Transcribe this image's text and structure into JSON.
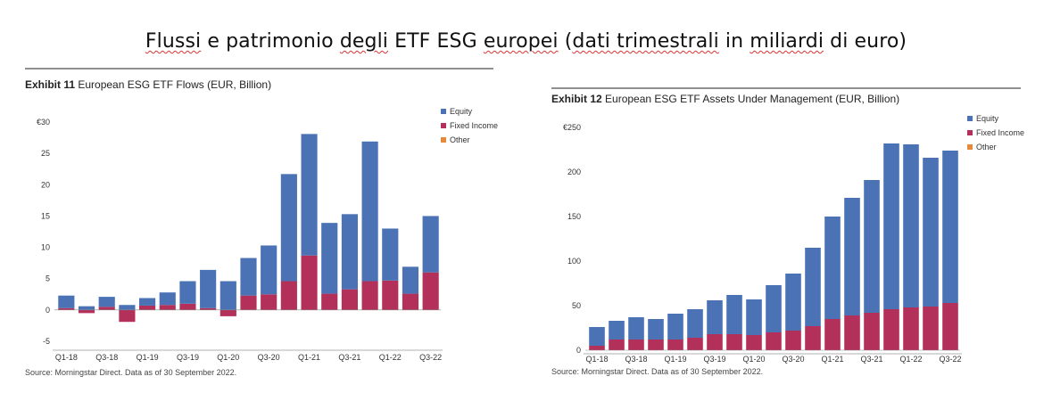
{
  "header": {
    "title_parts": [
      {
        "text": "Flussi",
        "wavy": true
      },
      {
        "text": " e patrimonio ",
        "wavy": false
      },
      {
        "text": "degli",
        "wavy": true
      },
      {
        "text": " ETF ESG ",
        "wavy": false
      },
      {
        "text": "europei",
        "wavy": true
      },
      {
        "text": " (",
        "wavy": false
      },
      {
        "text": "dati trimestrali",
        "wavy": true
      },
      {
        "text": " in ",
        "wavy": false
      },
      {
        "text": "miliardi",
        "wavy": true
      },
      {
        "text": " di euro)",
        "wavy": false
      }
    ]
  },
  "colors": {
    "equity": "#4a72b4",
    "fixed_income": "#b3305a",
    "other": "#e48a3c",
    "rule": "#222222",
    "axis": "#999999",
    "text": "#333333"
  },
  "chart_data": [
    {
      "type": "bar",
      "stacked": true,
      "exhibit": "Exhibit 11",
      "title": "European ESG ETF Flows (EUR, Billion)",
      "source": "Source: Morningstar Direct. Data as of 30 September 2022.",
      "categories": [
        "Q1-18",
        "Q2-18",
        "Q3-18",
        "Q4-18",
        "Q1-19",
        "Q2-19",
        "Q3-19",
        "Q4-19",
        "Q1-20",
        "Q2-20",
        "Q3-20",
        "Q4-20",
        "Q1-21",
        "Q2-21",
        "Q3-21",
        "Q4-21",
        "Q1-22",
        "Q2-22",
        "Q3-22"
      ],
      "x_tick_labels": [
        "Q1-18",
        "Q3-18",
        "Q1-19",
        "Q3-19",
        "Q1-20",
        "Q3-20",
        "Q1-21",
        "Q3-21",
        "Q1-22",
        "Q3-22"
      ],
      "y_ticks": [
        "€30",
        "25",
        "20",
        "15",
        "10",
        "5",
        "0",
        "-5"
      ],
      "y_tick_values": [
        30,
        25,
        20,
        15,
        10,
        5,
        0,
        -5
      ],
      "ylim": [
        -5,
        30
      ],
      "legend_position": "top-right",
      "series": [
        {
          "name": "Equity",
          "values": [
            2.0,
            0.6,
            1.6,
            0.8,
            1.2,
            2.0,
            3.6,
            6.1,
            4.6,
            6.0,
            7.8,
            17.1,
            19.4,
            11.3,
            12.0,
            22.3,
            8.3,
            4.3,
            9.0
          ]
        },
        {
          "name": "Fixed Income",
          "values": [
            0.3,
            -0.5,
            0.5,
            -1.9,
            0.7,
            0.8,
            1.0,
            0.3,
            -1.0,
            2.3,
            2.5,
            4.6,
            8.7,
            2.6,
            3.3,
            4.6,
            4.7,
            2.6,
            6.0
          ]
        },
        {
          "name": "Other",
          "values": [
            0,
            0,
            0,
            0,
            0,
            0,
            0,
            0,
            0,
            0,
            0,
            0,
            0,
            0,
            0,
            0,
            0,
            0,
            0
          ]
        }
      ]
    },
    {
      "type": "bar",
      "stacked": true,
      "exhibit": "Exhibit 12",
      "title": "European ESG ETF Assets Under Management (EUR, Billion)",
      "source": "Source: Morningstar Direct. Data as of 30 September 2022.",
      "categories": [
        "Q1-18",
        "Q2-18",
        "Q3-18",
        "Q4-18",
        "Q1-19",
        "Q2-19",
        "Q3-19",
        "Q4-19",
        "Q1-20",
        "Q2-20",
        "Q3-20",
        "Q4-20",
        "Q1-21",
        "Q2-21",
        "Q3-21",
        "Q4-21",
        "Q1-22",
        "Q2-22",
        "Q3-22"
      ],
      "x_tick_labels": [
        "Q1-18",
        "Q3-18",
        "Q1-19",
        "Q3-19",
        "Q1-20",
        "Q3-20",
        "Q1-21",
        "Q3-21",
        "Q1-22",
        "Q3-22"
      ],
      "y_ticks": [
        "€250",
        "200",
        "150",
        "100",
        "50",
        "0"
      ],
      "y_tick_values": [
        250,
        200,
        150,
        100,
        50,
        0
      ],
      "ylim": [
        0,
        250
      ],
      "legend_position": "top-right",
      "series": [
        {
          "name": "Equity",
          "values": [
            21,
            21,
            25,
            23,
            29,
            32,
            38,
            44,
            40,
            53,
            64,
            88,
            115,
            132,
            149,
            186,
            183,
            167,
            171
          ]
        },
        {
          "name": "Fixed Income",
          "values": [
            5,
            12,
            12,
            12,
            12,
            14,
            18,
            18,
            17,
            20,
            22,
            27,
            35,
            39,
            42,
            46,
            48,
            49,
            53
          ]
        },
        {
          "name": "Other",
          "values": [
            0,
            0,
            0,
            0,
            0,
            0,
            0,
            0,
            0,
            0,
            0,
            0,
            0,
            0,
            0,
            0,
            0,
            0,
            0
          ]
        }
      ]
    }
  ]
}
